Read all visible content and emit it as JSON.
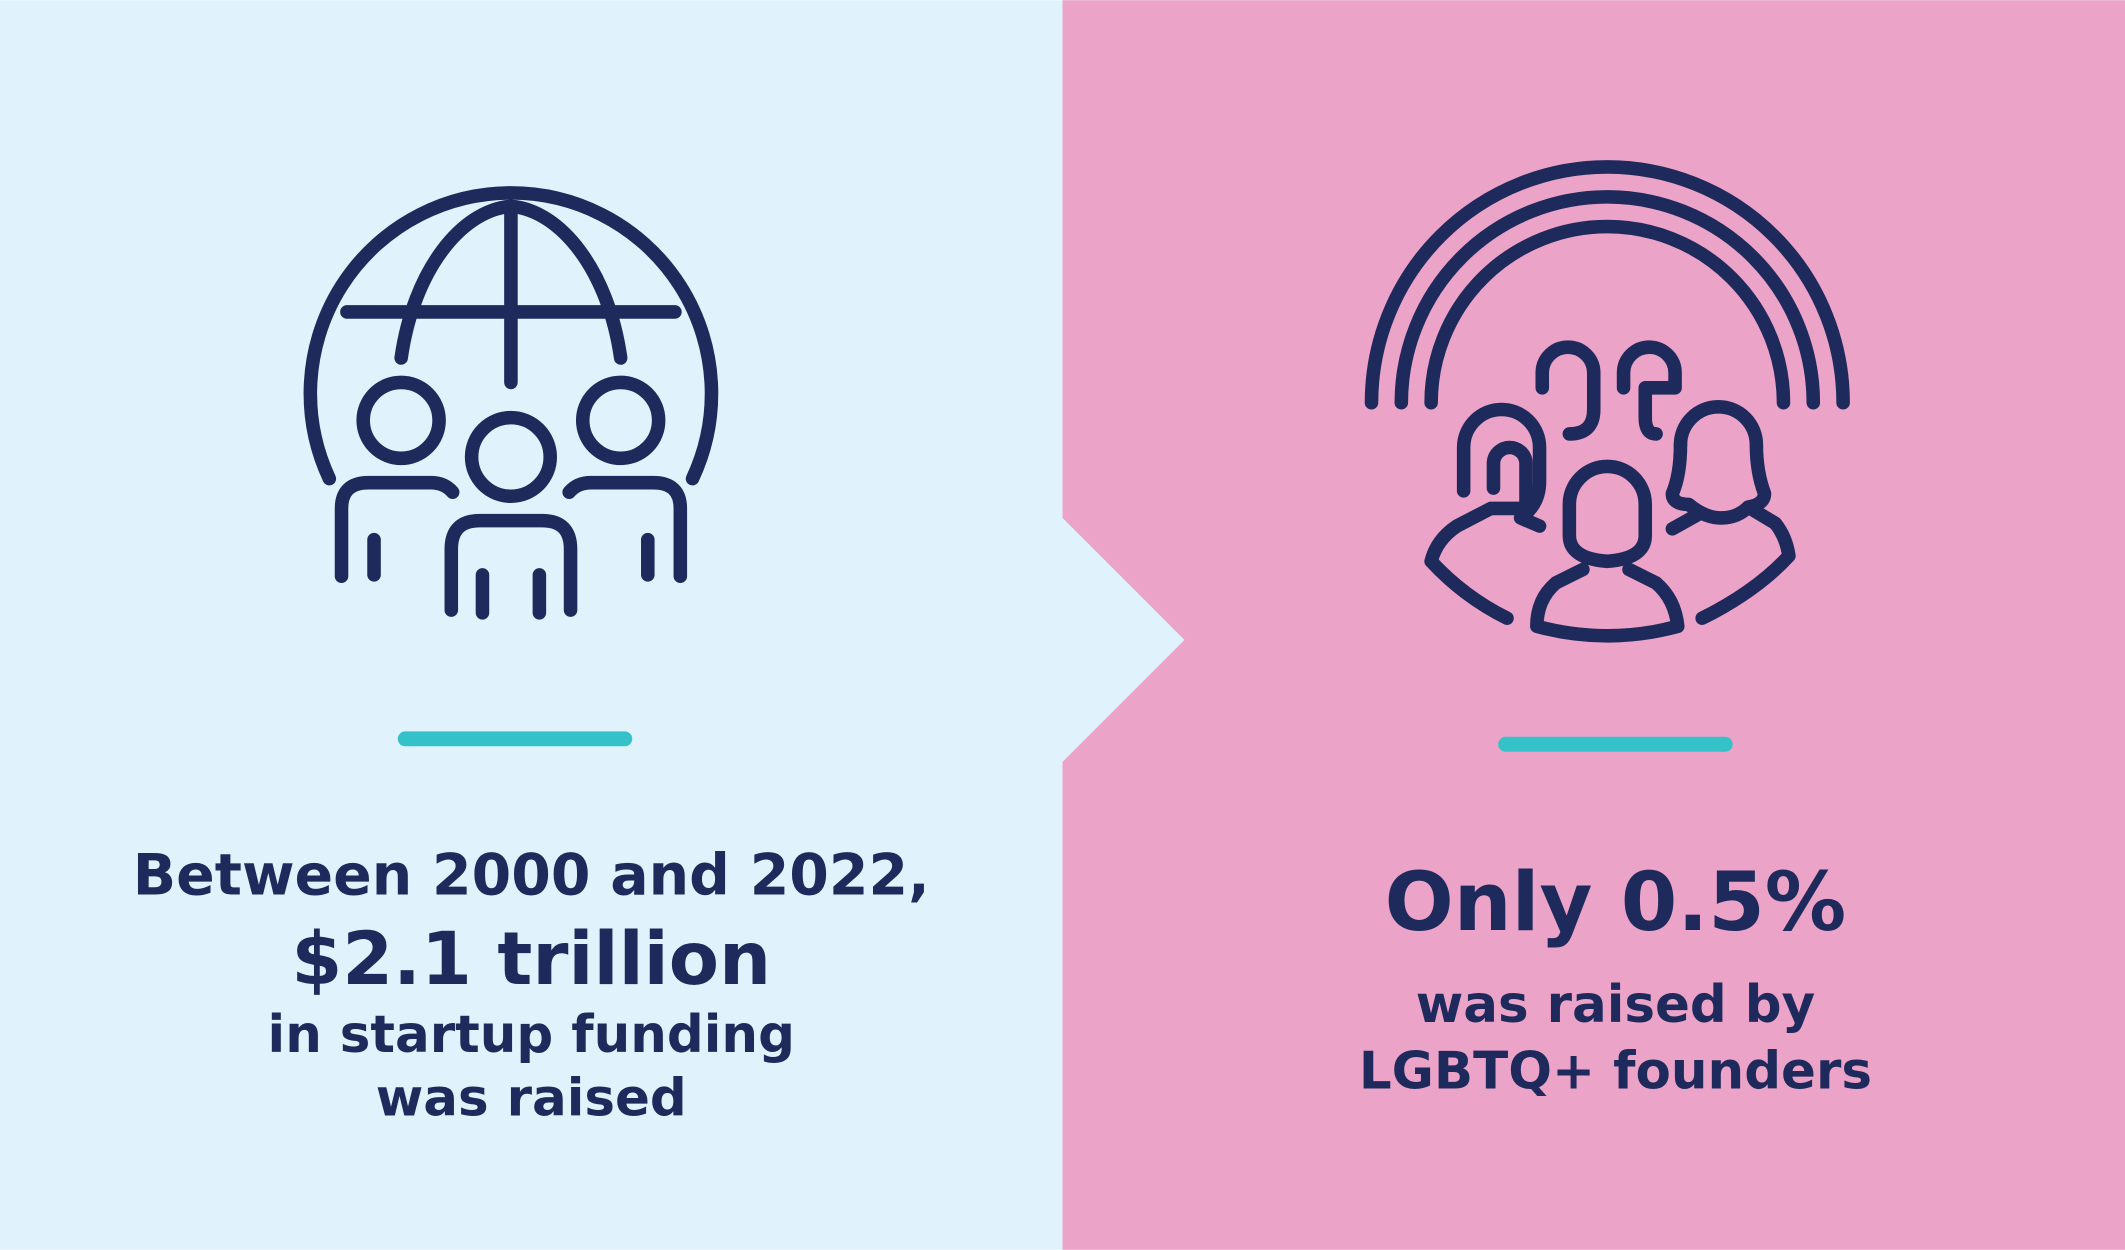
{
  "left": {
    "lines": [
      "Between 2000 and 2022,",
      "$2.1 trillion",
      "in startup funding",
      "was raised"
    ]
  },
  "right": {
    "lines": [
      "Only 0.5%",
      "was raised by",
      "LGBTQ+ founders"
    ]
  }
}
